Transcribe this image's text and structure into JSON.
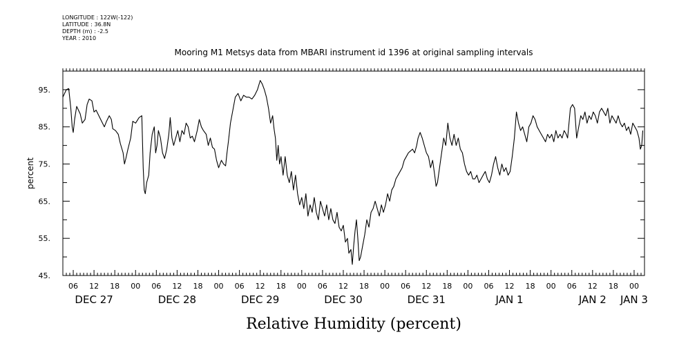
{
  "header": {
    "longitude": "LONGITUDE : 122W(-122)",
    "latitude": "LATITUDE : 36.8N",
    "depth": "DEPTH (m) : -2.5",
    "year": "YEAR : 2010"
  },
  "chart_data": {
    "type": "line",
    "title": "Mooring M1 Metsys data from MBARI instrument id 1396 at original sampling intervals",
    "xlabel": "Relative Humidity (percent)",
    "ylabel": "percent",
    "ylim": [
      45,
      100
    ],
    "yticks": [
      45,
      55,
      65,
      75,
      85,
      95
    ],
    "ytick_labels": [
      "45.",
      "55.",
      "65.",
      "75.",
      "85.",
      "95."
    ],
    "x_unit": "hours since 2010-12-26 00:00",
    "xlim": [
      3,
      171
    ],
    "hour_ticks": [
      {
        "h": 6,
        "label": "06"
      },
      {
        "h": 12,
        "label": "12"
      },
      {
        "h": 18,
        "label": "18"
      },
      {
        "h": 24,
        "label": "00"
      },
      {
        "h": 30,
        "label": "06"
      },
      {
        "h": 36,
        "label": "12"
      },
      {
        "h": 42,
        "label": "18"
      },
      {
        "h": 48,
        "label": "00"
      },
      {
        "h": 54,
        "label": "06"
      },
      {
        "h": 60,
        "label": "12"
      },
      {
        "h": 66,
        "label": "18"
      },
      {
        "h": 72,
        "label": "00"
      },
      {
        "h": 78,
        "label": "06"
      },
      {
        "h": 84,
        "label": "12"
      },
      {
        "h": 90,
        "label": "18"
      },
      {
        "h": 96,
        "label": "00"
      },
      {
        "h": 102,
        "label": "06"
      },
      {
        "h": 108,
        "label": "12"
      },
      {
        "h": 114,
        "label": "18"
      },
      {
        "h": 120,
        "label": "00"
      },
      {
        "h": 126,
        "label": "06"
      },
      {
        "h": 132,
        "label": "12"
      },
      {
        "h": 138,
        "label": "18"
      },
      {
        "h": 144,
        "label": "00"
      },
      {
        "h": 150,
        "label": "06"
      },
      {
        "h": 156,
        "label": "12"
      },
      {
        "h": 162,
        "label": "18"
      },
      {
        "h": 168,
        "label": "00"
      }
    ],
    "date_labels": [
      {
        "h": 12,
        "label": "DEC 27"
      },
      {
        "h": 36,
        "label": "DEC 28"
      },
      {
        "h": 60,
        "label": "DEC 29"
      },
      {
        "h": 84,
        "label": "DEC 30"
      },
      {
        "h": 108,
        "label": "DEC 31"
      },
      {
        "h": 132,
        "label": "JAN  1"
      },
      {
        "h": 156,
        "label": "JAN  2"
      },
      {
        "h": 168,
        "label": "JAN  3"
      }
    ],
    "series": [
      {
        "points": [
          [
            3,
            93
          ],
          [
            4,
            95
          ],
          [
            4.7,
            95.3
          ],
          [
            5.3,
            90
          ],
          [
            5.7,
            85
          ],
          [
            6,
            83.5
          ],
          [
            6.4,
            87
          ],
          [
            7,
            90.5
          ],
          [
            8,
            88.5
          ],
          [
            8.6,
            86
          ],
          [
            9.4,
            87
          ],
          [
            10,
            91
          ],
          [
            10.6,
            92.5
          ],
          [
            11.4,
            92
          ],
          [
            12,
            89
          ],
          [
            12.6,
            89.5
          ],
          [
            13.4,
            88
          ],
          [
            14.2,
            86.5
          ],
          [
            15,
            85
          ],
          [
            15.6,
            86.5
          ],
          [
            16.4,
            88
          ],
          [
            17,
            87
          ],
          [
            17.4,
            84.5
          ],
          [
            18.2,
            84
          ],
          [
            19,
            83
          ],
          [
            19.6,
            80.5
          ],
          [
            20.4,
            78
          ],
          [
            20.8,
            75
          ],
          [
            21.2,
            76.5
          ],
          [
            21.8,
            79
          ],
          [
            22.6,
            82
          ],
          [
            23.2,
            86.5
          ],
          [
            24,
            86
          ],
          [
            25,
            87.5
          ],
          [
            25.8,
            88
          ],
          [
            26.2,
            74
          ],
          [
            26.5,
            68
          ],
          [
            26.8,
            67
          ],
          [
            27.2,
            70
          ],
          [
            27.8,
            72
          ],
          [
            28.2,
            78
          ],
          [
            28.8,
            83
          ],
          [
            29.4,
            85
          ],
          [
            29.8,
            78
          ],
          [
            30.2,
            80
          ],
          [
            30.6,
            84
          ],
          [
            31.2,
            82
          ],
          [
            31.8,
            78
          ],
          [
            32.4,
            76.5
          ],
          [
            33,
            79
          ],
          [
            33.6,
            83
          ],
          [
            34,
            87.5
          ],
          [
            34.5,
            82
          ],
          [
            35,
            80
          ],
          [
            35.6,
            82
          ],
          [
            36.2,
            84
          ],
          [
            36.8,
            81
          ],
          [
            37.4,
            84
          ],
          [
            38,
            83
          ],
          [
            38.6,
            86
          ],
          [
            39.2,
            85
          ],
          [
            39.8,
            82
          ],
          [
            40.4,
            82.5
          ],
          [
            41,
            81
          ],
          [
            41.8,
            84
          ],
          [
            42.4,
            87
          ],
          [
            43,
            85
          ],
          [
            43.6,
            84
          ],
          [
            44.4,
            83
          ],
          [
            45,
            80
          ],
          [
            45.6,
            82
          ],
          [
            46.2,
            79.5
          ],
          [
            46.8,
            79
          ],
          [
            47.4,
            76
          ],
          [
            48,
            74
          ],
          [
            48.8,
            76
          ],
          [
            49.4,
            75
          ],
          [
            50,
            74.5
          ],
          [
            50.4,
            78
          ],
          [
            50.8,
            81
          ],
          [
            51.4,
            86
          ],
          [
            52,
            89
          ],
          [
            52.8,
            93
          ],
          [
            53.6,
            94
          ],
          [
            54.4,
            92
          ],
          [
            55.2,
            93.5
          ],
          [
            56,
            93
          ],
          [
            56.8,
            93
          ],
          [
            57.6,
            92.5
          ],
          [
            58.4,
            93.5
          ],
          [
            59.2,
            95
          ],
          [
            60,
            97.5
          ],
          [
            60.6,
            96.5
          ],
          [
            61.2,
            95
          ],
          [
            61.8,
            93
          ],
          [
            62.4,
            90
          ],
          [
            63,
            86
          ],
          [
            63.6,
            88
          ],
          [
            64,
            84.5
          ],
          [
            64.4,
            82
          ],
          [
            64.8,
            76
          ],
          [
            65.2,
            80
          ],
          [
            65.6,
            75
          ],
          [
            66,
            77
          ],
          [
            66.6,
            72
          ],
          [
            67.2,
            77
          ],
          [
            67.8,
            72
          ],
          [
            68.4,
            70
          ],
          [
            69,
            73
          ],
          [
            69.6,
            68
          ],
          [
            70.2,
            72
          ],
          [
            70.8,
            67
          ],
          [
            71.4,
            64
          ],
          [
            72,
            66
          ],
          [
            72.6,
            63
          ],
          [
            73.2,
            67
          ],
          [
            73.8,
            61
          ],
          [
            74.4,
            64
          ],
          [
            75,
            62
          ],
          [
            75.6,
            66
          ],
          [
            76.2,
            62
          ],
          [
            76.8,
            60
          ],
          [
            77.4,
            65
          ],
          [
            78,
            63
          ],
          [
            78.6,
            61
          ],
          [
            79.2,
            64
          ],
          [
            79.8,
            60
          ],
          [
            80.4,
            63
          ],
          [
            81,
            60
          ],
          [
            81.6,
            59
          ],
          [
            82.2,
            62
          ],
          [
            82.8,
            58
          ],
          [
            83.4,
            57
          ],
          [
            84,
            58.5
          ],
          [
            84.6,
            54
          ],
          [
            85.2,
            55
          ],
          [
            85.6,
            51
          ],
          [
            86.2,
            52
          ],
          [
            86.6,
            48
          ],
          [
            87,
            53
          ],
          [
            87.4,
            57
          ],
          [
            87.8,
            60
          ],
          [
            88.2,
            55
          ],
          [
            88.6,
            49
          ],
          [
            89,
            50
          ],
          [
            89.6,
            53
          ],
          [
            90.2,
            56
          ],
          [
            90.8,
            60
          ],
          [
            91.4,
            58
          ],
          [
            92,
            62
          ],
          [
            92.6,
            63
          ],
          [
            93.2,
            65
          ],
          [
            93.8,
            63
          ],
          [
            94.4,
            61
          ],
          [
            95,
            64
          ],
          [
            95.6,
            62
          ],
          [
            96.2,
            64
          ],
          [
            96.8,
            67
          ],
          [
            97.4,
            65
          ],
          [
            98,
            68
          ],
          [
            98.6,
            69
          ],
          [
            99.2,
            71
          ],
          [
            99.8,
            72
          ],
          [
            100.4,
            73
          ],
          [
            101,
            74
          ],
          [
            101.6,
            76
          ],
          [
            102.2,
            77
          ],
          [
            102.8,
            78
          ],
          [
            103.4,
            78.5
          ],
          [
            104,
            79
          ],
          [
            104.6,
            78
          ],
          [
            105.2,
            80
          ],
          [
            105.6,
            82
          ],
          [
            106.2,
            83.5
          ],
          [
            106.8,
            82
          ],
          [
            107.4,
            80
          ],
          [
            108,
            78
          ],
          [
            108.6,
            77
          ],
          [
            109.2,
            74
          ],
          [
            109.8,
            76
          ],
          [
            110.4,
            72
          ],
          [
            110.8,
            69
          ],
          [
            111.2,
            70
          ],
          [
            111.8,
            74
          ],
          [
            112.4,
            78
          ],
          [
            113,
            82
          ],
          [
            113.6,
            80
          ],
          [
            114.2,
            86
          ],
          [
            114.8,
            82
          ],
          [
            115.4,
            80
          ],
          [
            116,
            83
          ],
          [
            116.6,
            80
          ],
          [
            117.2,
            82
          ],
          [
            117.8,
            79
          ],
          [
            118.4,
            78
          ],
          [
            119,
            75
          ],
          [
            119.6,
            73
          ],
          [
            120.2,
            72
          ],
          [
            120.8,
            73
          ],
          [
            121.4,
            71
          ],
          [
            122,
            71
          ],
          [
            122.6,
            72
          ],
          [
            123.2,
            70
          ],
          [
            123.8,
            71
          ],
          [
            124.4,
            72
          ],
          [
            125,
            73
          ],
          [
            125.6,
            71
          ],
          [
            126.2,
            70
          ],
          [
            126.8,
            72
          ],
          [
            127.4,
            75
          ],
          [
            128,
            77
          ],
          [
            128.6,
            74
          ],
          [
            129.2,
            72
          ],
          [
            129.8,
            75
          ],
          [
            130.4,
            73
          ],
          [
            131,
            74
          ],
          [
            131.6,
            72
          ],
          [
            132.2,
            73
          ],
          [
            132.8,
            77
          ],
          [
            133.4,
            82
          ],
          [
            134,
            89
          ],
          [
            134.6,
            86
          ],
          [
            135.2,
            84
          ],
          [
            135.8,
            85
          ],
          [
            136.4,
            83
          ],
          [
            137,
            81
          ],
          [
            137.6,
            85
          ],
          [
            138.2,
            86
          ],
          [
            138.8,
            88
          ],
          [
            139.4,
            87
          ],
          [
            140,
            85
          ],
          [
            140.6,
            84
          ],
          [
            141.2,
            83
          ],
          [
            141.8,
            82
          ],
          [
            142.4,
            81
          ],
          [
            143,
            83
          ],
          [
            143.6,
            82
          ],
          [
            144.2,
            83
          ],
          [
            144.8,
            81
          ],
          [
            145.4,
            84
          ],
          [
            146,
            82
          ],
          [
            146.6,
            83
          ],
          [
            147.2,
            82
          ],
          [
            147.8,
            84
          ],
          [
            148.4,
            83
          ],
          [
            148.8,
            82
          ],
          [
            149.2,
            86
          ],
          [
            149.6,
            90
          ],
          [
            150.2,
            91
          ],
          [
            150.8,
            90
          ],
          [
            151.4,
            82
          ],
          [
            152,
            85
          ],
          [
            152.6,
            88
          ],
          [
            153.2,
            87
          ],
          [
            153.8,
            89
          ],
          [
            154.4,
            86
          ],
          [
            155,
            88
          ],
          [
            155.6,
            87
          ],
          [
            156.2,
            89
          ],
          [
            156.8,
            88
          ],
          [
            157.4,
            86
          ],
          [
            158,
            89
          ],
          [
            158.6,
            90
          ],
          [
            159.2,
            89
          ],
          [
            159.8,
            88
          ],
          [
            160.4,
            90
          ],
          [
            161,
            86
          ],
          [
            161.6,
            88
          ],
          [
            162.2,
            87
          ],
          [
            162.8,
            86
          ],
          [
            163.4,
            88
          ],
          [
            164,
            86
          ],
          [
            164.6,
            85
          ],
          [
            165.2,
            86
          ],
          [
            165.8,
            84
          ],
          [
            166.4,
            85
          ],
          [
            167,
            83
          ],
          [
            167.6,
            86
          ],
          [
            168.2,
            85
          ],
          [
            168.8,
            84
          ],
          [
            169.4,
            82
          ],
          [
            169.8,
            79
          ],
          [
            170.2,
            80
          ],
          [
            170.5,
            84
          ]
        ]
      }
    ]
  }
}
